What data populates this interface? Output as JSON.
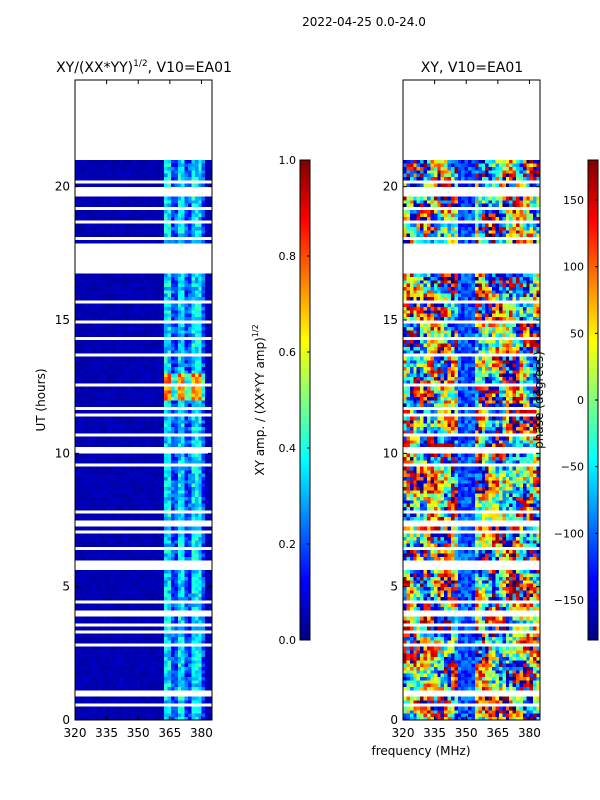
{
  "suptitle": "2022-04-25 0.0-24.0",
  "xlabel": "frequency (MHz)",
  "chart_data": [
    {
      "type": "heatmap",
      "title": "XY/(XX*YY)",
      "title_exponent": "1/2",
      "title_suffix": ", V10=EA01",
      "xlabel": "",
      "ylabel": "UT (hours)",
      "xlim": [
        320,
        385
      ],
      "ylim": [
        0,
        24
      ],
      "xticks": [
        320,
        335,
        350,
        365,
        380
      ],
      "yticks": [
        0,
        5,
        10,
        15,
        20
      ],
      "colorbar": {
        "label": "XY amp. / (XX*YY amp)",
        "label_exponent": "1/2",
        "range": [
          0.0,
          1.0
        ],
        "ticks": [
          0.0,
          0.2,
          0.4,
          0.6,
          0.8,
          1.0
        ],
        "tick_labels": [
          "0.0",
          "0.2",
          "0.4",
          "0.6",
          "0.8",
          "1.0"
        ],
        "colormap": "jet"
      },
      "data_end_hour": 21.0,
      "bright_band_mhz": [
        362,
        382
      ],
      "bright_band_mean": 0.35,
      "background_mean": 0.05,
      "peak_hours": [
        12.0,
        13.0
      ],
      "peak_value": 0.75
    },
    {
      "type": "heatmap",
      "title": "XY, V10=EA01",
      "ylabel": "",
      "xlim": [
        320,
        385
      ],
      "ylim": [
        0,
        24
      ],
      "xticks": [
        320,
        335,
        350,
        365,
        380
      ],
      "yticks": [
        0,
        5,
        10,
        15,
        20
      ],
      "colorbar": {
        "label": "phase (degrees)",
        "range": [
          -180,
          180
        ],
        "ticks": [
          -150,
          -100,
          -50,
          0,
          50,
          100,
          150
        ],
        "tick_labels": [
          "−150",
          "−100",
          "−50",
          "0",
          "50",
          "100",
          "150"
        ],
        "colormap": "jet"
      },
      "data_end_hour": 21.0,
      "phase_range_deg": [
        -180,
        180
      ],
      "note": "phase varies across full range; blue band near 350 MHz"
    }
  ],
  "colors": {
    "jet_low": "#00007f",
    "jet_high": "#7f0000",
    "gap": "#ffffff"
  }
}
